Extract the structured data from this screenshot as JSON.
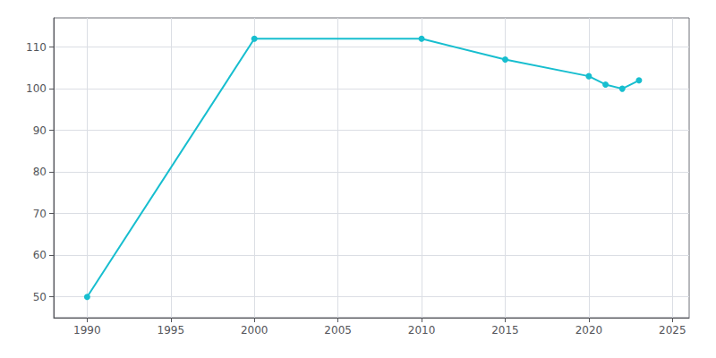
{
  "chart_data": {
    "type": "line",
    "x": [
      1990,
      2000,
      2010,
      2015,
      2020,
      2021,
      2022,
      2023
    ],
    "values": [
      50,
      112,
      112,
      107,
      103,
      101,
      100,
      102
    ],
    "color": "#17becf",
    "marker": "circle",
    "xlim": [
      1988,
      2026
    ],
    "ylim": [
      45,
      117
    ],
    "xticks": [
      1990,
      1995,
      2000,
      2005,
      2010,
      2015,
      2020,
      2025
    ],
    "yticks": [
      50,
      60,
      70,
      80,
      90,
      100,
      110
    ],
    "grid": true
  }
}
